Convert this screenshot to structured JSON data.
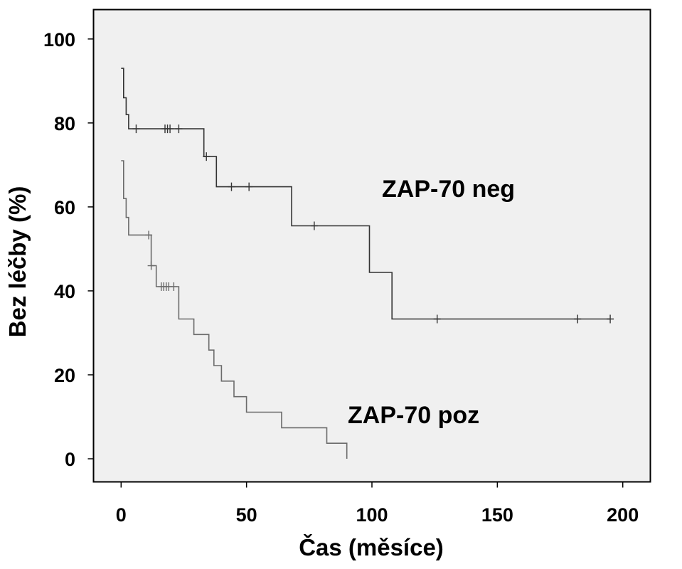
{
  "chart_data": {
    "type": "line",
    "xlabel": "Čas (měsíce)",
    "ylabel": "Bez léčby (%)",
    "xlim": [
      -11,
      211
    ],
    "ylim": [
      -5.5,
      107
    ],
    "xticks": [
      0,
      50,
      100,
      150,
      200
    ],
    "yticks": [
      0,
      20,
      40,
      60,
      80,
      100
    ],
    "grid": false,
    "background": "#f0f0f0",
    "series": [
      {
        "name": "ZAP-70 neg",
        "color": "#333333",
        "step_points": [
          [
            0,
            93
          ],
          [
            1,
            86
          ],
          [
            2,
            82
          ],
          [
            3,
            78.6
          ],
          [
            33,
            72
          ],
          [
            38,
            64.8
          ],
          [
            68,
            55.5
          ],
          [
            99,
            44.4
          ],
          [
            108,
            33.3
          ],
          [
            195,
            33.3
          ]
        ],
        "censored": [
          [
            6,
            78.6
          ],
          [
            17.5,
            78.6
          ],
          [
            18.5,
            78.6
          ],
          [
            19.5,
            78.6
          ],
          [
            23,
            78.6
          ],
          [
            34,
            72
          ],
          [
            44,
            64.8
          ],
          [
            51,
            64.8
          ],
          [
            77,
            55.5
          ],
          [
            126,
            33.3
          ],
          [
            182,
            33.3
          ],
          [
            195,
            33.3
          ]
        ]
      },
      {
        "name": "ZAP-70 poz",
        "color": "#6b6b6b",
        "step_points": [
          [
            0,
            71
          ],
          [
            1,
            62
          ],
          [
            2,
            57.5
          ],
          [
            3,
            53.3
          ],
          [
            12,
            46
          ],
          [
            14,
            41
          ],
          [
            19,
            41
          ],
          [
            23,
            33.3
          ],
          [
            29,
            29.6
          ],
          [
            35,
            25.9
          ],
          [
            37,
            22.2
          ],
          [
            40,
            18.5
          ],
          [
            45,
            14.8
          ],
          [
            50,
            11.1
          ],
          [
            64,
            7.4
          ],
          [
            82,
            3.7
          ],
          [
            90,
            0
          ]
        ],
        "censored": [
          [
            11,
            53.3
          ],
          [
            12,
            46
          ],
          [
            16,
            41
          ],
          [
            17,
            41
          ],
          [
            18,
            41
          ],
          [
            19,
            41
          ],
          [
            21,
            41
          ]
        ]
      }
    ]
  }
}
